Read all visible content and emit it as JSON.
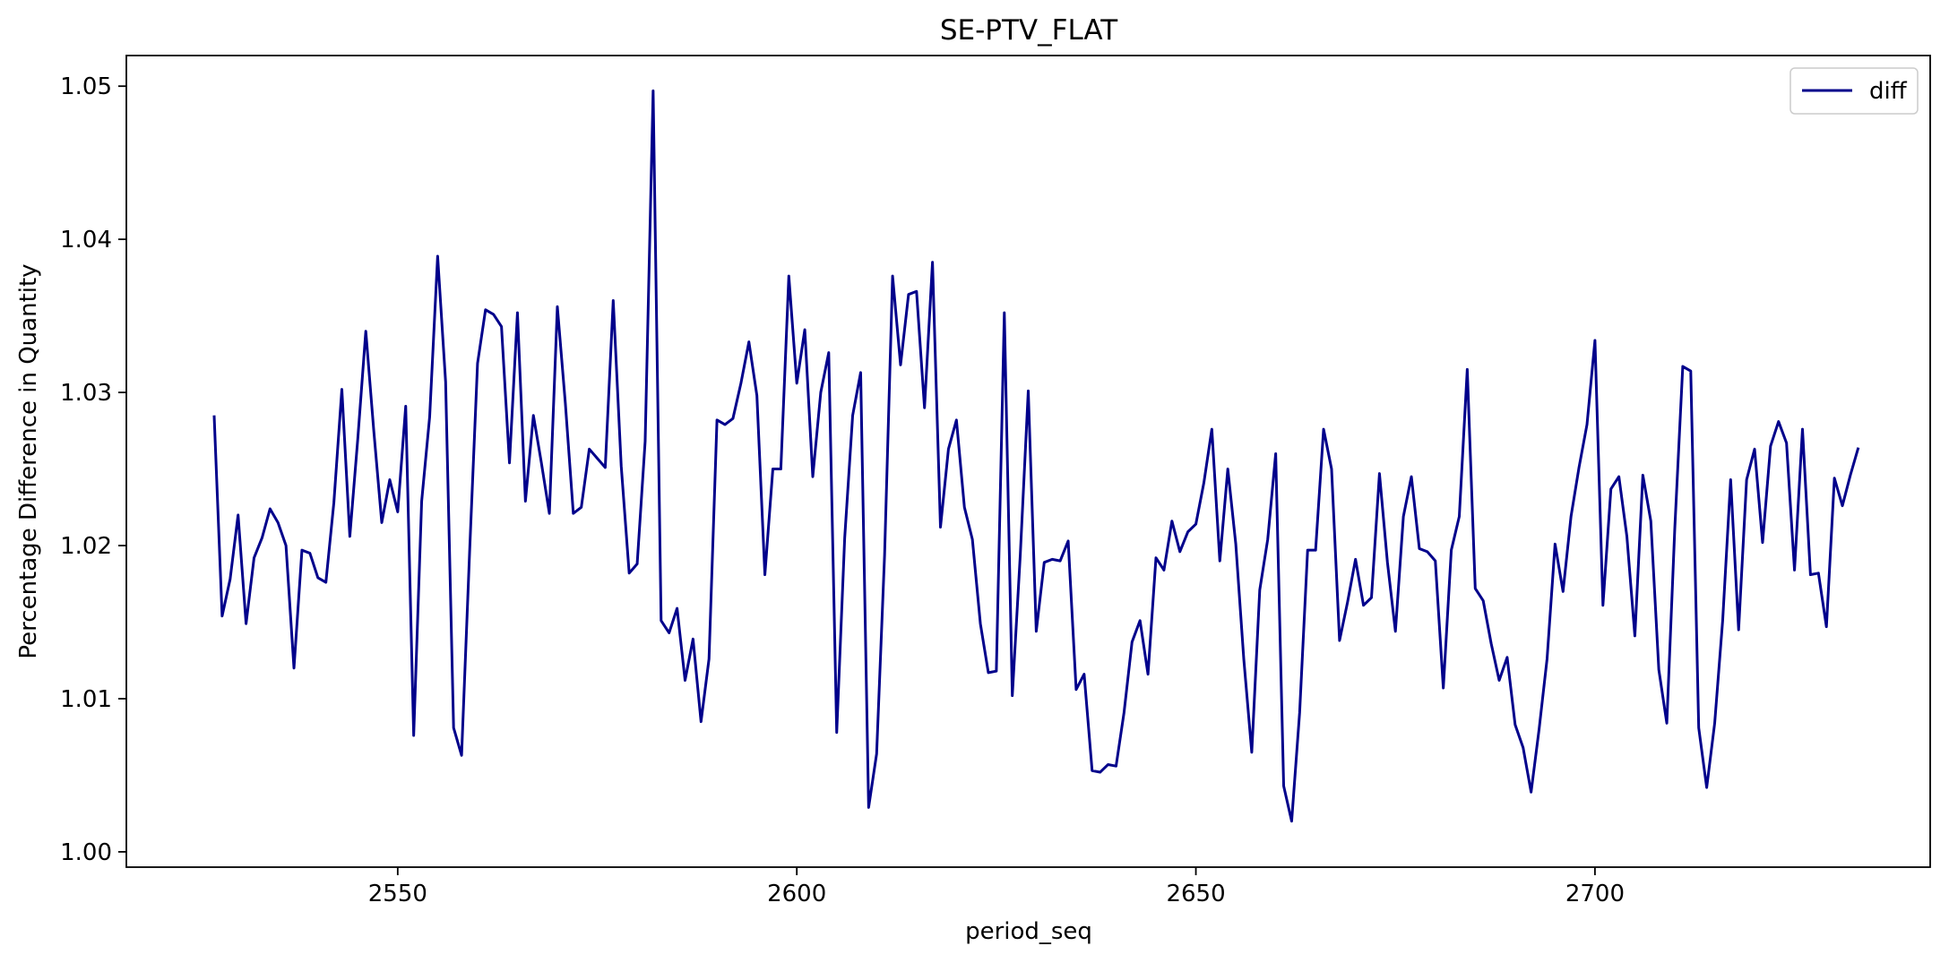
{
  "chart_data": {
    "type": "line",
    "title": "SE-PTV_FLAT",
    "xlabel": "period_seq",
    "ylabel": "Percentage Difference in Quantity",
    "xlim": [
      2516,
      2742
    ],
    "ylim": [
      0.999,
      1.052
    ],
    "xticks": [
      2550,
      2600,
      2650,
      2700
    ],
    "yticks": [
      1.0,
      1.01,
      1.02,
      1.03,
      1.04,
      1.05
    ],
    "ytick_labels": [
      "1.00",
      "1.01",
      "1.02",
      "1.03",
      "1.04",
      "1.05"
    ],
    "grid": false,
    "legend_position": "top-right",
    "series": [
      {
        "name": "diff",
        "color": "#00008b",
        "x_start": 2527,
        "values": [
          1.0285,
          1.0154,
          1.0178,
          1.022,
          1.0149,
          1.0192,
          1.0205,
          1.0224,
          1.0215,
          1.02,
          1.012,
          1.0197,
          1.0195,
          1.0179,
          1.0176,
          1.0228,
          1.0302,
          1.0206,
          1.027,
          1.034,
          1.0275,
          1.0215,
          1.0243,
          1.0222,
          1.0291,
          1.0076,
          1.0229,
          1.0284,
          1.0389,
          1.0307,
          1.0081,
          1.0063,
          1.0195,
          1.0319,
          1.0354,
          1.0351,
          1.0343,
          1.0254,
          1.0352,
          1.0229,
          1.0285,
          1.0254,
          1.0221,
          1.0356,
          1.0293,
          1.0221,
          1.0225,
          1.0263,
          1.0257,
          1.0251,
          1.036,
          1.0252,
          1.0182,
          1.0188,
          1.0268,
          1.0497,
          1.0151,
          1.0143,
          1.0159,
          1.0112,
          1.0139,
          1.0085,
          1.0126,
          1.0282,
          1.0279,
          1.0283,
          1.0306,
          1.0333,
          1.0298,
          1.0181,
          1.025,
          1.025,
          1.0376,
          1.0306,
          1.0341,
          1.0245,
          1.03,
          1.0326,
          1.0078,
          1.0205,
          1.0285,
          1.0313,
          1.0029,
          1.0064,
          1.0194,
          1.0376,
          1.0318,
          1.0364,
          1.0366,
          1.029,
          1.0385,
          1.0212,
          1.0263,
          1.0282,
          1.0225,
          1.0204,
          1.0149,
          1.0117,
          1.0118,
          1.0352,
          1.0102,
          1.0194,
          1.0301,
          1.0144,
          1.0189,
          1.0191,
          1.019,
          1.0203,
          1.0106,
          1.0116,
          1.0053,
          1.0052,
          1.0057,
          1.0056,
          1.0091,
          1.0137,
          1.0151,
          1.0116,
          1.0192,
          1.0184,
          1.0216,
          1.0196,
          1.0209,
          1.0214,
          1.0241,
          1.0276,
          1.019,
          1.025,
          1.0201,
          1.0126,
          1.0065,
          1.0171,
          1.0204,
          1.026,
          1.0043,
          1.002,
          1.0091,
          1.0197,
          1.0197,
          1.0276,
          1.025,
          1.0138,
          1.0163,
          1.0191,
          1.0161,
          1.0166,
          1.0247,
          1.0189,
          1.0144,
          1.0219,
          1.0245,
          1.0198,
          1.0196,
          1.019,
          1.0107,
          1.0197,
          1.0219,
          1.0315,
          1.0172,
          1.0164,
          1.0136,
          1.0112,
          1.0127,
          1.0083,
          1.0068,
          1.0039,
          1.008,
          1.0126,
          1.0201,
          1.017,
          1.0219,
          1.0251,
          1.0279,
          1.0334,
          1.0161,
          1.0237,
          1.0245,
          1.0206,
          1.0141,
          1.0246,
          1.0216,
          1.0119,
          1.0084,
          1.0211,
          1.0317,
          1.0314,
          1.0081,
          1.0042,
          1.0084,
          1.0151,
          1.0243,
          1.0145,
          1.0243,
          1.0263,
          1.0202,
          1.0265,
          1.0281,
          1.0267,
          1.0184,
          1.0276,
          1.0181,
          1.0182,
          1.0147,
          1.0244,
          1.0226,
          1.0246,
          1.0264
        ]
      }
    ]
  }
}
